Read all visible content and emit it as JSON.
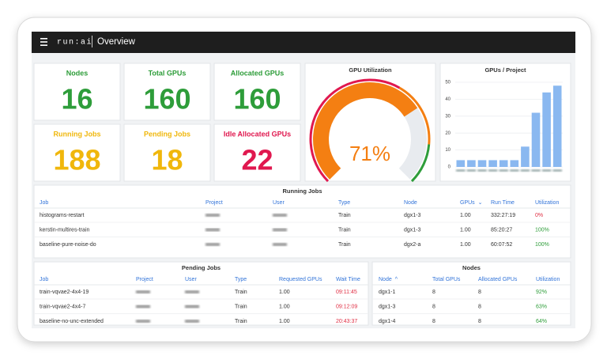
{
  "header": {
    "logo": "run:ai",
    "title": "Overview"
  },
  "stats": [
    {
      "label": "Nodes",
      "value": 16,
      "color": "#2e9d3a"
    },
    {
      "label": "Total GPUs",
      "value": 160,
      "color": "#2e9d3a"
    },
    {
      "label": "Allocated GPUs",
      "value": 160,
      "color": "#2e9d3a"
    },
    {
      "label": "Running Jobs",
      "value": 188,
      "color": "#f0b70c"
    },
    {
      "label": "Pending Jobs",
      "value": 18,
      "color": "#f0b70c"
    },
    {
      "label": "Idle Allocated GPUs",
      "value": 22,
      "color": "#e0184f"
    }
  ],
  "chart_data": [
    {
      "type": "gauge",
      "title": "GPU Utilization",
      "value": 71,
      "value_label": "71%",
      "ylim": [
        0,
        100
      ],
      "color": "#f47f12"
    },
    {
      "type": "bar",
      "title": "GPUs / Project",
      "categories": [
        null,
        null,
        null,
        null,
        null,
        null,
        null,
        null,
        null,
        null
      ],
      "values": [
        4,
        4,
        4,
        4,
        4,
        4,
        12,
        32,
        44,
        48
      ],
      "color": "#8ab8f0",
      "ylim": [
        0,
        50
      ],
      "yticks": [
        0,
        10,
        20,
        30,
        40,
        50
      ],
      "grid": true
    }
  ],
  "tables": {
    "running": {
      "title": "Running Jobs",
      "columns": [
        "Job",
        "Project",
        "User",
        "Type",
        "Node",
        "GPUs",
        "Run Time",
        "Utilization"
      ],
      "rows": [
        [
          "histograms-restart",
          "Train",
          "dgx1-3",
          "1.00",
          "332:27:19",
          "0%"
        ],
        [
          "kerstin-multires-train",
          "Train",
          "dgx1-3",
          "1.00",
          "85:20:27",
          "100%"
        ],
        [
          "baseline-pure-noise-do",
          "Train",
          "dgx2-a",
          "1.00",
          "60:07:52",
          "100%"
        ]
      ],
      "status_colors": [
        "#e02f44",
        "#2e9d3a",
        "#2e9d3a"
      ]
    },
    "pending": {
      "title": "Pending Jobs",
      "columns": [
        "Job",
        "Project",
        "User",
        "Type",
        "Requested GPUs",
        "Wait Time"
      ],
      "rows": [
        [
          "train-vqvae2-4x4-19",
          "Train",
          "1.00",
          "09:11:45"
        ],
        [
          "train-vqvae2-4x4-7",
          "Train",
          "1.00",
          "09:12:09"
        ],
        [
          "baseline-no-unc-extended",
          "Train",
          "1.00",
          "20:43:37"
        ]
      ],
      "status_colors": [
        "#e02f44",
        "#e02f44",
        "#e02f44"
      ]
    },
    "nodes": {
      "title": "Nodes",
      "columns": [
        "Node",
        "Total GPUs",
        "Allocated GPUs",
        "Utilization"
      ],
      "rows": [
        [
          "dgx1-1",
          "8",
          "8",
          "92%"
        ],
        [
          "dgx1-3",
          "8",
          "8",
          "63%"
        ],
        [
          "dgx1-4",
          "8",
          "8",
          "64%"
        ]
      ],
      "status_colors": [
        "#2e9d3a",
        "#2e9d3a",
        "#2e9d3a"
      ]
    }
  }
}
